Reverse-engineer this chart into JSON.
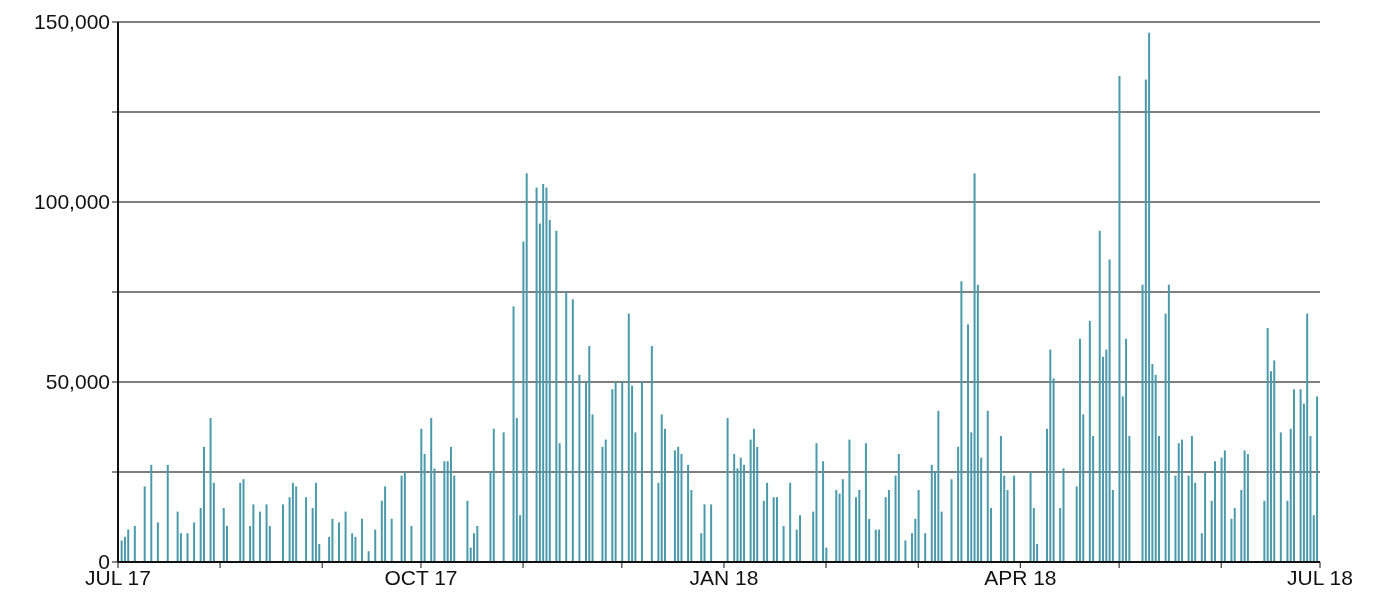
{
  "chart_data": {
    "type": "bar",
    "color": "#4a9aab",
    "grid": "y",
    "xlim": [
      "2017-07-01",
      "2018-07-01"
    ],
    "xticks": [
      {
        "value": "2017-07-01",
        "label": "JUL 17"
      },
      {
        "value": "2017-08-01",
        "label": null
      },
      {
        "value": "2017-09-01",
        "label": null
      },
      {
        "value": "2017-10-01",
        "label": "OCT 17"
      },
      {
        "value": "2017-11-01",
        "label": null
      },
      {
        "value": "2017-12-01",
        "label": null
      },
      {
        "value": "2018-01-01",
        "label": "JAN 18"
      },
      {
        "value": "2018-02-01",
        "label": null
      },
      {
        "value": "2018-03-01",
        "label": null
      },
      {
        "value": "2018-04-01",
        "label": "APR 18"
      },
      {
        "value": "2018-05-01",
        "label": null
      },
      {
        "value": "2018-06-01",
        "label": null
      },
      {
        "value": "2018-07-01",
        "label": "JUL 18"
      }
    ],
    "ylim": [
      0,
      150000
    ],
    "yticks": [
      0,
      {
        "value": 25000,
        "label": null
      },
      {
        "value": 50000,
        "label": "50,000"
      },
      {
        "value": 75000,
        "label": null
      },
      {
        "value": 100000,
        "label": "100,000"
      },
      {
        "value": 125000,
        "label": null
      },
      {
        "value": 150000,
        "label": "150,000"
      }
    ],
    "x": [
      "2017-07-02",
      "2017-07-03",
      "2017-07-04",
      "2017-07-06",
      "2017-07-09",
      "2017-07-11",
      "2017-07-13",
      "2017-07-16",
      "2017-07-19",
      "2017-07-20",
      "2017-07-22",
      "2017-07-24",
      "2017-07-26",
      "2017-07-27",
      "2017-07-29",
      "2017-07-30",
      "2017-08-02",
      "2017-08-03",
      "2017-08-07",
      "2017-08-08",
      "2017-08-10",
      "2017-08-11",
      "2017-08-13",
      "2017-08-15",
      "2017-08-16",
      "2017-08-20",
      "2017-08-22",
      "2017-08-23",
      "2017-08-24",
      "2017-08-27",
      "2017-08-29",
      "2017-08-30",
      "2017-08-31",
      "2017-09-03",
      "2017-09-04",
      "2017-09-06",
      "2017-09-08",
      "2017-09-10",
      "2017-09-11",
      "2017-09-13",
      "2017-09-15",
      "2017-09-17",
      "2017-09-19",
      "2017-09-20",
      "2017-09-22",
      "2017-09-25",
      "2017-09-26",
      "2017-09-28",
      "2017-10-01",
      "2017-10-02",
      "2017-10-04",
      "2017-10-05",
      "2017-10-08",
      "2017-10-09",
      "2017-10-10",
      "2017-10-11",
      "2017-10-15",
      "2017-10-16",
      "2017-10-17",
      "2017-10-18",
      "2017-10-22",
      "2017-10-23",
      "2017-10-26",
      "2017-10-29",
      "2017-10-30",
      "2017-10-31",
      "2017-11-01",
      "2017-11-02",
      "2017-11-05",
      "2017-11-06",
      "2017-11-07",
      "2017-11-08",
      "2017-11-09",
      "2017-11-11",
      "2017-11-12",
      "2017-11-14",
      "2017-11-16",
      "2017-11-18",
      "2017-11-20",
      "2017-11-21",
      "2017-11-22",
      "2017-11-25",
      "2017-11-26",
      "2017-11-28",
      "2017-11-29",
      "2017-12-01",
      "2017-12-03",
      "2017-12-04",
      "2017-12-05",
      "2017-12-07",
      "2017-12-10",
      "2017-12-12",
      "2017-12-13",
      "2017-12-14",
      "2017-12-17",
      "2017-12-18",
      "2017-12-19",
      "2017-12-21",
      "2017-12-22",
      "2017-12-25",
      "2017-12-26",
      "2017-12-28",
      "2018-01-02",
      "2018-01-04",
      "2018-01-05",
      "2018-01-06",
      "2018-01-07",
      "2018-01-09",
      "2018-01-10",
      "2018-01-11",
      "2018-01-13",
      "2018-01-14",
      "2018-01-16",
      "2018-01-17",
      "2018-01-19",
      "2018-01-21",
      "2018-01-23",
      "2018-01-24",
      "2018-01-28",
      "2018-01-29",
      "2018-01-31",
      "2018-02-01",
      "2018-02-04",
      "2018-02-05",
      "2018-02-06",
      "2018-02-08",
      "2018-02-10",
      "2018-02-11",
      "2018-02-13",
      "2018-02-14",
      "2018-02-16",
      "2018-02-17",
      "2018-02-19",
      "2018-02-20",
      "2018-02-22",
      "2018-02-23",
      "2018-02-25",
      "2018-02-27",
      "2018-02-28",
      "2018-03-01",
      "2018-03-03",
      "2018-03-05",
      "2018-03-06",
      "2018-03-07",
      "2018-03-08",
      "2018-03-11",
      "2018-03-13",
      "2018-03-14",
      "2018-03-16",
      "2018-03-17",
      "2018-03-18",
      "2018-03-19",
      "2018-03-20",
      "2018-03-22",
      "2018-03-23",
      "2018-03-26",
      "2018-03-27",
      "2018-03-28",
      "2018-03-30",
      "2018-04-04",
      "2018-04-05",
      "2018-04-06",
      "2018-04-09",
      "2018-04-10",
      "2018-04-11",
      "2018-04-13",
      "2018-04-14",
      "2018-04-18",
      "2018-04-19",
      "2018-04-20",
      "2018-04-22",
      "2018-04-23",
      "2018-04-25",
      "2018-04-26",
      "2018-04-27",
      "2018-04-28",
      "2018-04-29",
      "2018-05-01",
      "2018-05-02",
      "2018-05-03",
      "2018-05-04",
      "2018-05-08",
      "2018-05-09",
      "2018-05-10",
      "2018-05-11",
      "2018-05-12",
      "2018-05-13",
      "2018-05-15",
      "2018-05-16",
      "2018-05-18",
      "2018-05-19",
      "2018-05-20",
      "2018-05-22",
      "2018-05-23",
      "2018-05-24",
      "2018-05-26",
      "2018-05-27",
      "2018-05-29",
      "2018-05-30",
      "2018-06-01",
      "2018-06-02",
      "2018-06-04",
      "2018-06-05",
      "2018-06-07",
      "2018-06-08",
      "2018-06-09",
      "2018-06-14",
      "2018-06-15",
      "2018-06-16",
      "2018-06-17",
      "2018-06-19",
      "2018-06-21",
      "2018-06-22",
      "2018-06-23",
      "2018-06-25",
      "2018-06-26",
      "2018-06-27",
      "2018-06-28",
      "2018-06-29",
      "2018-06-30"
    ],
    "values": [
      6000,
      7000,
      9000,
      10000,
      21000,
      27000,
      11000,
      27000,
      14000,
      8000,
      8000,
      11000,
      15000,
      32000,
      40000,
      22000,
      15000,
      10000,
      22000,
      23000,
      10000,
      16000,
      14000,
      16000,
      10000,
      16000,
      18000,
      22000,
      21000,
      18000,
      15000,
      22000,
      5000,
      7000,
      12000,
      11000,
      14000,
      8000,
      7000,
      12000,
      3000,
      9000,
      17000,
      21000,
      12000,
      24000,
      25000,
      10000,
      37000,
      30000,
      40000,
      26000,
      28000,
      28000,
      32000,
      24000,
      17000,
      4000,
      8000,
      10000,
      25000,
      37000,
      36000,
      71000,
      40000,
      13000,
      89000,
      108000,
      104000,
      94000,
      105000,
      104000,
      95000,
      92000,
      33000,
      75000,
      73000,
      52000,
      50000,
      60000,
      41000,
      32000,
      34000,
      48000,
      50000,
      50000,
      69000,
      49000,
      36000,
      50000,
      60000,
      22000,
      41000,
      37000,
      31000,
      32000,
      30000,
      27000,
      20000,
      8000,
      16000,
      16000,
      40000,
      30000,
      26000,
      29000,
      27000,
      34000,
      37000,
      32000,
      17000,
      22000,
      18000,
      18000,
      10000,
      22000,
      9000,
      13000,
      14000,
      33000,
      28000,
      4000,
      20000,
      19000,
      23000,
      34000,
      18000,
      20000,
      33000,
      12000,
      9000,
      9000,
      18000,
      20000,
      24000,
      30000,
      6000,
      8000,
      12000,
      20000,
      8000,
      27000,
      25000,
      42000,
      14000,
      23000,
      32000,
      78000,
      66000,
      36000,
      108000,
      77000,
      29000,
      42000,
      15000,
      35000,
      24000,
      20000,
      24000,
      25000,
      15000,
      5000,
      37000,
      59000,
      51000,
      15000,
      26000,
      21000,
      62000,
      41000,
      67000,
      35000,
      92000,
      57000,
      59000,
      84000,
      20000,
      135000,
      46000,
      62000,
      35000,
      77000,
      134000,
      147000,
      55000,
      52000,
      35000,
      69000,
      77000,
      24000,
      33000,
      34000,
      24000,
      35000,
      22000,
      8000,
      25000,
      17000,
      28000,
      29000,
      31000,
      12000,
      15000,
      20000,
      31000,
      30000,
      17000,
      65000,
      53000,
      56000,
      36000,
      17000,
      37000,
      48000,
      48000,
      44000,
      69000,
      35000,
      13000,
      46000
    ]
  }
}
